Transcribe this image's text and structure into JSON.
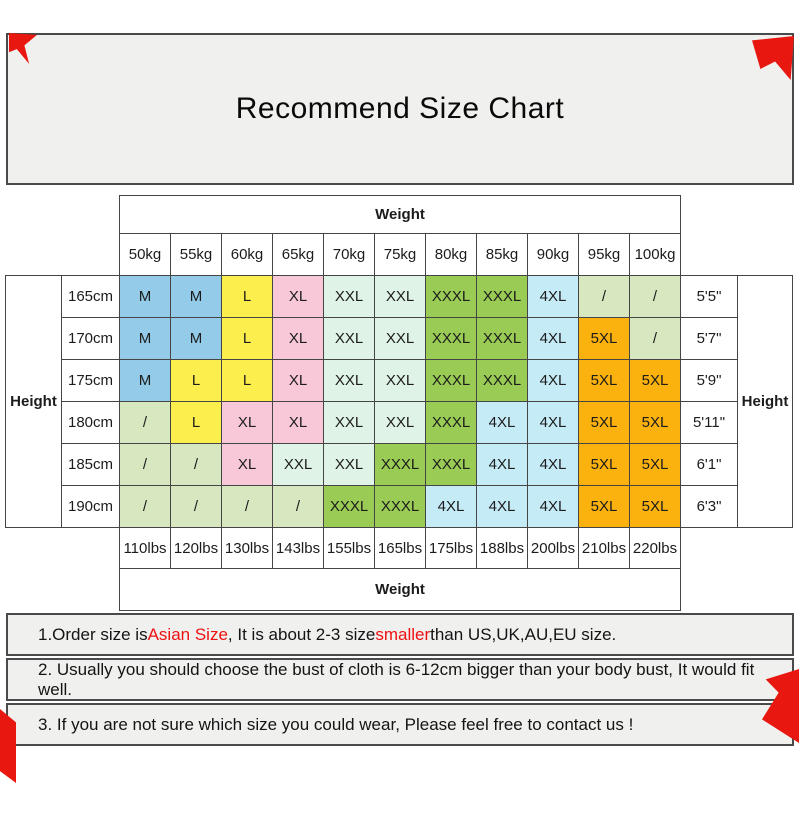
{
  "title": "Recommend Size Chart",
  "table": {
    "weight_header_top": "Weight",
    "weight_header_bottom": "Weight",
    "height_label_left": "Height",
    "height_label_right": "Height",
    "kg_columns": [
      "50kg",
      "55kg",
      "60kg",
      "65kg",
      "70kg",
      "75kg",
      "80kg",
      "85kg",
      "90kg",
      "95kg",
      "100kg"
    ],
    "lbs_columns": [
      "110lbs",
      "120lbs",
      "130lbs",
      "143lbs",
      "155lbs",
      "165lbs",
      "175lbs",
      "188lbs",
      "200lbs",
      "210lbs",
      "220lbs"
    ],
    "rows": [
      {
        "height_cm": "165cm",
        "height_ft": "5'5\"",
        "cells": [
          {
            "size": "M",
            "color": "blue"
          },
          {
            "size": "M",
            "color": "blue"
          },
          {
            "size": "L",
            "color": "yellow"
          },
          {
            "size": "XL",
            "color": "pink"
          },
          {
            "size": "XXL",
            "color": "mint"
          },
          {
            "size": "XXL",
            "color": "mint"
          },
          {
            "size": "XXXL",
            "color": "green"
          },
          {
            "size": "XXXL",
            "color": "green"
          },
          {
            "size": "4XL",
            "color": "cyan"
          },
          {
            "size": "/",
            "color": "sage"
          },
          {
            "size": "/",
            "color": "sage"
          }
        ]
      },
      {
        "height_cm": "170cm",
        "height_ft": "5'7\"",
        "cells": [
          {
            "size": "M",
            "color": "blue"
          },
          {
            "size": "M",
            "color": "blue"
          },
          {
            "size": "L",
            "color": "yellow"
          },
          {
            "size": "XL",
            "color": "pink"
          },
          {
            "size": "XXL",
            "color": "mint"
          },
          {
            "size": "XXL",
            "color": "mint"
          },
          {
            "size": "XXXL",
            "color": "green"
          },
          {
            "size": "XXXL",
            "color": "green"
          },
          {
            "size": "4XL",
            "color": "cyan"
          },
          {
            "size": "5XL",
            "color": "orange"
          },
          {
            "size": "/",
            "color": "sage"
          }
        ]
      },
      {
        "height_cm": "175cm",
        "height_ft": "5'9\"",
        "cells": [
          {
            "size": "M",
            "color": "blue"
          },
          {
            "size": "L",
            "color": "yellow"
          },
          {
            "size": "L",
            "color": "yellow"
          },
          {
            "size": "XL",
            "color": "pink"
          },
          {
            "size": "XXL",
            "color": "mint"
          },
          {
            "size": "XXL",
            "color": "mint"
          },
          {
            "size": "XXXL",
            "color": "green"
          },
          {
            "size": "XXXL",
            "color": "green"
          },
          {
            "size": "4XL",
            "color": "cyan"
          },
          {
            "size": "5XL",
            "color": "orange"
          },
          {
            "size": "5XL",
            "color": "orange"
          }
        ]
      },
      {
        "height_cm": "180cm",
        "height_ft": "5'11\"",
        "cells": [
          {
            "size": "/",
            "color": "sage"
          },
          {
            "size": "L",
            "color": "yellow"
          },
          {
            "size": "XL",
            "color": "pink"
          },
          {
            "size": "XL",
            "color": "pink"
          },
          {
            "size": "XXL",
            "color": "mint"
          },
          {
            "size": "XXL",
            "color": "mint"
          },
          {
            "size": "XXXL",
            "color": "green"
          },
          {
            "size": "4XL",
            "color": "cyan"
          },
          {
            "size": "4XL",
            "color": "cyan"
          },
          {
            "size": "5XL",
            "color": "orange"
          },
          {
            "size": "5XL",
            "color": "orange"
          }
        ]
      },
      {
        "height_cm": "185cm",
        "height_ft": "6'1\"",
        "cells": [
          {
            "size": "/",
            "color": "sage"
          },
          {
            "size": "/",
            "color": "sage"
          },
          {
            "size": "XL",
            "color": "pink"
          },
          {
            "size": "XXL",
            "color": "mint"
          },
          {
            "size": "XXL",
            "color": "mint"
          },
          {
            "size": "XXXL",
            "color": "green"
          },
          {
            "size": "XXXL",
            "color": "green"
          },
          {
            "size": "4XL",
            "color": "cyan"
          },
          {
            "size": "4XL",
            "color": "cyan"
          },
          {
            "size": "5XL",
            "color": "orange"
          },
          {
            "size": "5XL",
            "color": "orange"
          }
        ]
      },
      {
        "height_cm": "190cm",
        "height_ft": "6'3\"",
        "cells": [
          {
            "size": "/",
            "color": "sage"
          },
          {
            "size": "/",
            "color": "sage"
          },
          {
            "size": "/",
            "color": "sage"
          },
          {
            "size": "/",
            "color": "sage"
          },
          {
            "size": "XXXL",
            "color": "green"
          },
          {
            "size": "XXXL",
            "color": "green"
          },
          {
            "size": "4XL",
            "color": "cyan"
          },
          {
            "size": "4XL",
            "color": "cyan"
          },
          {
            "size": "4XL",
            "color": "cyan"
          },
          {
            "size": "5XL",
            "color": "orange"
          },
          {
            "size": "5XL",
            "color": "orange"
          }
        ]
      }
    ]
  },
  "notes": [
    {
      "part1": "1.Order size is ",
      "red1": "Asian Size",
      "part2": ", It is about 2-3 size ",
      "red2": "smaller",
      "part3": " than US,UK,AU,EU size."
    },
    {
      "text": "2. Usually you should choose the bust of cloth is 6-12cm bigger than your body bust, It would fit well."
    },
    {
      "text": "3. If you are not sure which size you could wear, Please feel free to contact us !"
    }
  ],
  "colors": {
    "blue": "#93cbe9",
    "yellow": "#fcee4c",
    "pink": "#f8c8d8",
    "mint": "#dff3e7",
    "green": "#9acc55",
    "cyan": "#c5ebf7",
    "orange": "#fbb10e",
    "sage": "#d7e7c0",
    "note_red": "#ee1111",
    "decor_red": "#e8170f",
    "box_bg": "#f0f0ef",
    "border": "#454545"
  }
}
